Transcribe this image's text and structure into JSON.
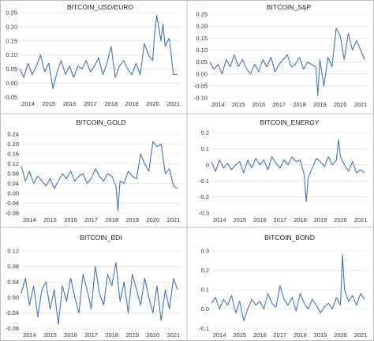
{
  "colors": {
    "line": "#4472c4",
    "grid": "#d9d9d9",
    "frame": "#bfbfbf"
  },
  "chart_data": [
    {
      "type": "line",
      "title": "BITCOIN_USD/EURO",
      "x_ticks": [
        "2014",
        "2015",
        "2016",
        "2017",
        "2018",
        "2019",
        "2020",
        "2021"
      ],
      "y_ticks": [
        -0.05,
        0,
        0.05,
        0.1,
        0.15,
        0.2,
        0.25
      ],
      "y_tick_labels": [
        "-0.05",
        "0.00",
        "0.05",
        "0.10",
        "0.15",
        "0.20",
        "0.25"
      ],
      "ylim": [
        -0.05,
        0.25
      ],
      "xlim": [
        2013.6,
        2021.35
      ],
      "grid": true,
      "series": [
        {
          "x": [
            2013.6,
            2013.8,
            2014.0,
            2014.2,
            2014.4,
            2014.6,
            2014.8,
            2015.0,
            2015.2,
            2015.4,
            2015.6,
            2015.8,
            2016.0,
            2016.2,
            2016.4,
            2016.6,
            2016.8,
            2017.0,
            2017.2,
            2017.4,
            2017.6,
            2017.8,
            2018.0,
            2018.2,
            2018.4,
            2018.6,
            2018.8,
            2019.0,
            2019.2,
            2019.4,
            2019.6,
            2019.8,
            2020.0,
            2020.1,
            2020.2,
            2020.4,
            2020.5,
            2020.6,
            2020.8,
            2021.0,
            2021.2
          ],
          "y": [
            0.05,
            0.02,
            0.07,
            0.03,
            0.06,
            0.1,
            0.04,
            0.07,
            -0.02,
            0.04,
            0.08,
            0.03,
            0.06,
            0.02,
            0.06,
            0.05,
            0.08,
            0.04,
            0.06,
            0.09,
            0.03,
            0.07,
            0.13,
            0.02,
            0.06,
            0.08,
            0.05,
            0.03,
            0.07,
            0.03,
            0.14,
            0.1,
            0.08,
            0.18,
            0.24,
            0.15,
            0.21,
            0.13,
            0.16,
            0.03,
            0.03
          ]
        }
      ]
    },
    {
      "type": "line",
      "title": "BITCOIN_S&P",
      "x_ticks": [
        "2014",
        "2015",
        "2016",
        "2017",
        "2018",
        "2019",
        "2020",
        "2021"
      ],
      "y_ticks": [
        -0.1,
        -0.05,
        0,
        0.05,
        0.1,
        0.15,
        0.2,
        0.25
      ],
      "y_tick_labels": [
        "-0.10",
        "-0.05",
        "0.00",
        "0.05",
        "0.10",
        "0.15",
        "0.20",
        "0.25"
      ],
      "ylim": [
        -0.1,
        0.25
      ],
      "xlim": [
        2013.6,
        2021.35
      ],
      "grid": true,
      "series": [
        {
          "x": [
            2013.6,
            2013.8,
            2014.0,
            2014.2,
            2014.4,
            2014.6,
            2014.8,
            2015.0,
            2015.2,
            2015.4,
            2015.6,
            2015.8,
            2016.0,
            2016.2,
            2016.4,
            2016.6,
            2016.8,
            2017.0,
            2017.2,
            2017.4,
            2017.6,
            2017.8,
            2018.0,
            2018.2,
            2018.4,
            2018.6,
            2018.8,
            2018.9,
            2019.0,
            2019.2,
            2019.4,
            2019.6,
            2019.8,
            2020.0,
            2020.2,
            2020.4,
            2020.6,
            2020.8,
            2021.0,
            2021.2
          ],
          "y": [
            0.05,
            0.02,
            0.04,
            0.0,
            0.06,
            0.03,
            0.08,
            0.03,
            0.06,
            0.02,
            0.0,
            0.04,
            0.01,
            0.06,
            0.03,
            0.07,
            0.01,
            0.04,
            0.06,
            0.08,
            0.03,
            0.04,
            0.07,
            0.02,
            0.05,
            0.04,
            0.03,
            -0.09,
            0.06,
            -0.05,
            0.07,
            0.03,
            0.19,
            0.16,
            0.06,
            0.17,
            0.1,
            0.14,
            0.1,
            0.06
          ]
        }
      ]
    },
    {
      "type": "line",
      "title": "BITCOIN_GOLD",
      "x_ticks": [
        "2014",
        "2015",
        "2016",
        "2017",
        "2018",
        "2019",
        "2020",
        "2021"
      ],
      "y_ticks": [
        -0.08,
        -0.04,
        0,
        0.04,
        0.08,
        0.12,
        0.16,
        0.2,
        0.24
      ],
      "y_tick_labels": [
        "-0.08",
        "-0.04",
        "0.00",
        "0.04",
        "0.08",
        "0.12",
        "0.16",
        "0.20",
        "0.24"
      ],
      "ylim": [
        -0.08,
        0.24
      ],
      "xlim": [
        2013.6,
        2021.35
      ],
      "grid": true,
      "series": [
        {
          "x": [
            2013.6,
            2013.8,
            2014.0,
            2014.2,
            2014.4,
            2014.6,
            2014.8,
            2015.0,
            2015.2,
            2015.4,
            2015.6,
            2015.8,
            2016.0,
            2016.2,
            2016.4,
            2016.6,
            2016.8,
            2017.0,
            2017.2,
            2017.4,
            2017.6,
            2017.8,
            2018.0,
            2018.2,
            2018.3,
            2018.4,
            2018.6,
            2018.8,
            2019.0,
            2019.2,
            2019.4,
            2019.6,
            2019.8,
            2020.0,
            2020.2,
            2020.4,
            2020.6,
            2020.8,
            2021.0,
            2021.2
          ],
          "y": [
            0.11,
            0.05,
            0.09,
            0.04,
            0.07,
            0.05,
            0.03,
            0.06,
            0.02,
            0.05,
            0.08,
            0.06,
            0.09,
            0.05,
            0.07,
            0.08,
            0.04,
            0.06,
            0.1,
            0.07,
            0.05,
            0.08,
            0.07,
            0.03,
            -0.07,
            0.05,
            0.04,
            0.09,
            0.07,
            0.06,
            0.16,
            0.12,
            0.09,
            0.21,
            0.19,
            0.2,
            0.08,
            0.1,
            0.03,
            0.02
          ]
        }
      ]
    },
    {
      "type": "line",
      "title": "BITCOIN_ENERGY",
      "x_ticks": [
        "2014",
        "2015",
        "2016",
        "2017",
        "2018",
        "2019",
        "2020",
        "2021"
      ],
      "y_ticks": [
        -0.3,
        -0.2,
        -0.1,
        0,
        0.1,
        0.2
      ],
      "y_tick_labels": [
        "-0.3",
        "-0.2",
        "-0.1",
        "0",
        "0.1",
        "0.2"
      ],
      "ylim": [
        -0.3,
        0.2
      ],
      "xlim": [
        2013.6,
        2021.35
      ],
      "grid": true,
      "series": [
        {
          "x": [
            2013.6,
            2013.8,
            2014.0,
            2014.2,
            2014.4,
            2014.6,
            2014.8,
            2015.0,
            2015.2,
            2015.4,
            2015.6,
            2015.8,
            2016.0,
            2016.2,
            2016.4,
            2016.6,
            2016.8,
            2017.0,
            2017.2,
            2017.4,
            2017.6,
            2017.8,
            2018.0,
            2018.2,
            2018.3,
            2018.4,
            2018.6,
            2018.8,
            2019.0,
            2019.2,
            2019.4,
            2019.6,
            2019.8,
            2019.9,
            2020.0,
            2020.2,
            2020.4,
            2020.6,
            2020.8,
            2021.0,
            2021.2
          ],
          "y": [
            0.02,
            -0.04,
            0.03,
            -0.02,
            0.01,
            -0.03,
            0.0,
            0.02,
            -0.05,
            0.03,
            -0.02,
            0.04,
            0.0,
            0.03,
            -0.03,
            0.05,
            0.01,
            -0.02,
            0.03,
            0.0,
            0.05,
            0.02,
            0.03,
            -0.06,
            -0.23,
            -0.08,
            -0.02,
            0.04,
            0.02,
            -0.01,
            0.05,
            0.0,
            0.03,
            0.16,
            0.05,
            0.0,
            -0.04,
            0.02,
            -0.05,
            -0.03,
            -0.05
          ]
        }
      ]
    },
    {
      "type": "line",
      "title": "BITCOIN_BDI",
      "x_ticks": [
        "2014",
        "2015",
        "2016",
        "2017",
        "2018",
        "2019",
        "2020",
        "2021"
      ],
      "y_ticks": [
        -0.08,
        -0.04,
        0,
        0.04,
        0.08,
        0.12
      ],
      "y_tick_labels": [
        "-0.08",
        "-0.04",
        "0.00",
        "0.04",
        "0.08",
        "0.12"
      ],
      "ylim": [
        -0.08,
        0.12
      ],
      "xlim": [
        2013.6,
        2021.35
      ],
      "grid": true,
      "series": [
        {
          "x": [
            2013.6,
            2013.8,
            2014.0,
            2014.2,
            2014.4,
            2014.6,
            2014.8,
            2015.0,
            2015.2,
            2015.4,
            2015.6,
            2015.8,
            2016.0,
            2016.2,
            2016.4,
            2016.6,
            2016.8,
            2017.0,
            2017.2,
            2017.4,
            2017.6,
            2017.8,
            2018.0,
            2018.2,
            2018.4,
            2018.6,
            2018.8,
            2019.0,
            2019.2,
            2019.4,
            2019.6,
            2019.8,
            2020.0,
            2020.2,
            2020.4,
            2020.6,
            2020.8,
            2021.0,
            2021.2
          ],
          "y": [
            0.01,
            0.05,
            -0.02,
            0.03,
            -0.05,
            0.02,
            0.04,
            -0.03,
            0.02,
            -0.07,
            0.03,
            -0.01,
            0.05,
            0.0,
            -0.04,
            0.06,
            0.02,
            -0.03,
            0.08,
            0.01,
            -0.02,
            0.06,
            0.03,
            0.09,
            -0.01,
            0.04,
            -0.04,
            0.06,
            0.02,
            -0.02,
            0.05,
            0.0,
            -0.04,
            0.03,
            -0.06,
            0.02,
            -0.03,
            0.05,
            0.02
          ]
        }
      ]
    },
    {
      "type": "line",
      "title": "BITCOIN_BOND",
      "x_ticks": [
        "2014",
        "2015",
        "2016",
        "2017",
        "2018",
        "2019",
        "2020",
        "2021"
      ],
      "y_ticks": [
        -0.1,
        0,
        0.1,
        0.2,
        0.3
      ],
      "y_tick_labels": [
        "-0.1",
        "0.0",
        "0.1",
        "0.2",
        "0.3"
      ],
      "ylim": [
        -0.1,
        0.3
      ],
      "xlim": [
        2013.6,
        2021.35
      ],
      "grid": true,
      "series": [
        {
          "x": [
            2013.6,
            2013.8,
            2014.0,
            2014.2,
            2014.4,
            2014.6,
            2014.8,
            2015.0,
            2015.2,
            2015.4,
            2015.6,
            2015.8,
            2016.0,
            2016.2,
            2016.4,
            2016.6,
            2016.8,
            2017.0,
            2017.2,
            2017.4,
            2017.6,
            2017.8,
            2018.0,
            2018.2,
            2018.4,
            2018.6,
            2018.8,
            2019.0,
            2019.2,
            2019.4,
            2019.6,
            2019.8,
            2020.0,
            2020.1,
            2020.2,
            2020.4,
            2020.6,
            2020.8,
            2021.0,
            2021.2
          ],
          "y": [
            0.03,
            0.06,
            0.0,
            0.05,
            0.02,
            0.07,
            -0.02,
            0.04,
            -0.06,
            0.0,
            0.05,
            0.02,
            0.04,
            0.0,
            0.08,
            0.03,
            0.01,
            0.12,
            0.05,
            0.02,
            0.06,
            -0.01,
            0.08,
            0.03,
            0.0,
            0.05,
            0.02,
            -0.02,
            0.01,
            0.03,
            0.0,
            0.06,
            0.02,
            0.28,
            0.1,
            0.04,
            0.07,
            0.02,
            0.08,
            0.05
          ]
        }
      ]
    }
  ]
}
